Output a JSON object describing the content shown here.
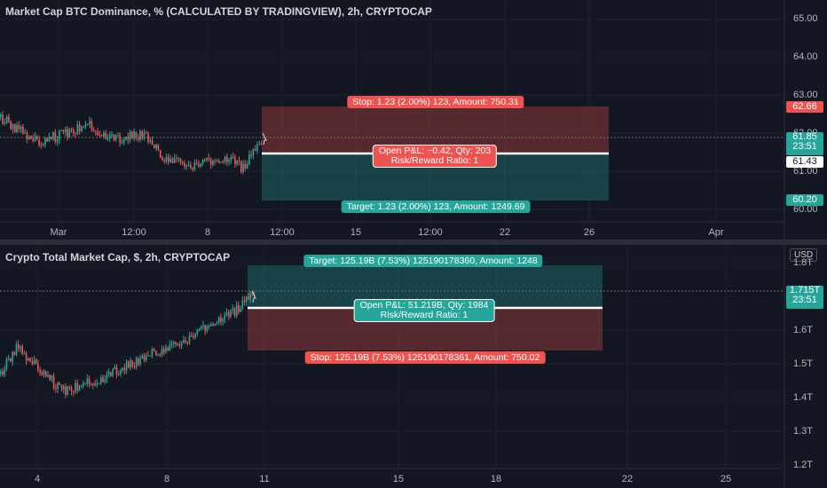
{
  "top": {
    "title": "Market Cap BTC Dominance, % (CALCULATED BY TRADINGVIEW), 2h, CRYPTOCAP",
    "y_ticks": [
      "65.00",
      "64.00",
      "63.00",
      "62.00",
      "61.00",
      "60.00"
    ],
    "x_ticks": [
      "Mar",
      "12:00",
      "8",
      "12:00",
      "15",
      "12:00",
      "22",
      "26",
      "Apr"
    ],
    "price_tags": {
      "stop": "62.66",
      "last": "61.85",
      "countdown": "23:51",
      "entry": "61.43",
      "target": "60.20"
    },
    "stop_label": "Stop: 1.23 (2.00%) 123, Amount: 750.31",
    "info_line1": "Open P&L: −0.42, Qty: 203",
    "info_line2": "Risk/Reward Ratio: 1",
    "target_label": "Target: 1.23 (2.00%) 123, Amount: 1249.69"
  },
  "bottom": {
    "title": "Crypto Total Market Cap, $, 2h, CRYPTOCAP",
    "currency": "USD",
    "y_ticks": [
      "1.8T",
      "1.6T",
      "1.5T",
      "1.4T",
      "1.3T",
      "1.2T"
    ],
    "x_ticks": [
      "4",
      "8",
      "11",
      "15",
      "18",
      "22",
      "25"
    ],
    "price_tags": {
      "last": "1.715T",
      "countdown": "23:51"
    },
    "target_label": "Target: 125.19B (7.53%) 125190178360, Amount: 1248",
    "info_line1": "Open P&L: 51.219B, Qty: 1984",
    "info_line2": "Risk/Reward Ratio: 1",
    "stop_label": "Stop: 125.19B (7.53%) 125190178361, Amount: 750.02"
  },
  "colors": {
    "up": "#26a69a",
    "down": "#ef5350",
    "background": "#131722",
    "grid": "#1e222d"
  }
}
